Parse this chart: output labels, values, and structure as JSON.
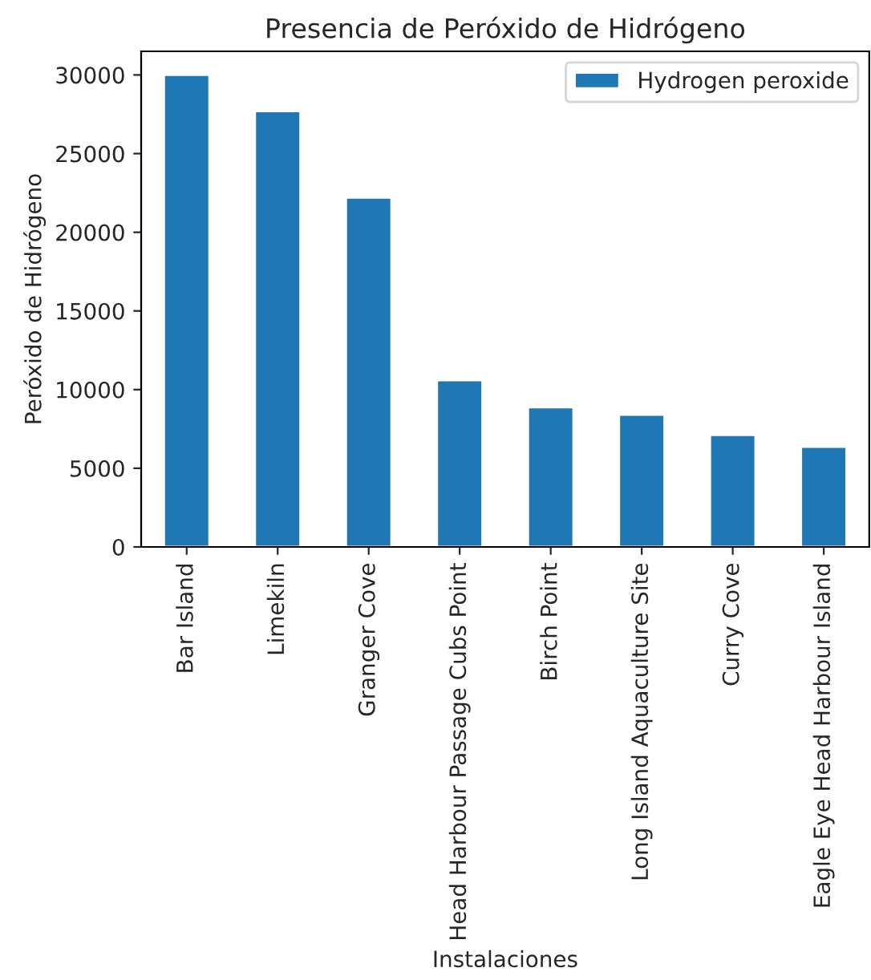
{
  "chart_data": {
    "type": "bar",
    "title": "Presencia de Peróxido de Hidrógeno",
    "xlabel": "Instalaciones",
    "ylabel": "Peróxido de Hidrógeno",
    "categories": [
      "Bar Island",
      "Limekiln",
      "Granger Cove",
      "Head Harbour Passage Cubs Point",
      "Birch Point",
      "Long Island Aquaculture Site",
      "Curry Cove",
      "Eagle Eye Head Harbour Island"
    ],
    "series": [
      {
        "name": "Hydrogen peroxide",
        "color": "#1f77b4",
        "values": [
          30000,
          27700,
          22200,
          10600,
          8880,
          8410,
          7120,
          6370
        ]
      }
    ],
    "ylim": [
      0,
      31500
    ],
    "yticks": [
      0,
      5000,
      10000,
      15000,
      20000,
      25000,
      30000
    ],
    "legend": "top right",
    "grid": false
  }
}
